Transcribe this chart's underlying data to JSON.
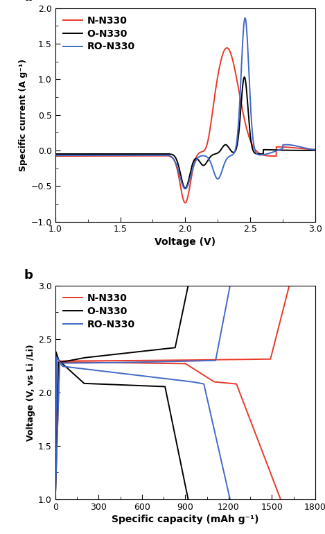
{
  "panel_a": {
    "title": "a",
    "xlabel": "Voltage (V)",
    "ylabel": "Specific current (A g⁻¹)",
    "xlim": [
      1.0,
      3.0
    ],
    "ylim": [
      -1.0,
      2.0
    ],
    "xticks": [
      1.0,
      1.5,
      2.0,
      2.5,
      3.0
    ],
    "yticks": [
      -1.0,
      -0.5,
      0.0,
      0.5,
      1.0,
      1.5,
      2.0
    ],
    "colors": {
      "N-N330": "#e8392a",
      "O-N330": "#000000",
      "RO-N330": "#4169c8"
    },
    "legend_labels": [
      "N-N330",
      "O-N330",
      "RO-N330"
    ]
  },
  "panel_b": {
    "title": "b",
    "xlabel": "Specific capacity (mAh g⁻¹)",
    "ylabel": "Voltage (V, vs Li /Li)",
    "xlim": [
      0,
      1800
    ],
    "ylim": [
      1.0,
      3.0
    ],
    "xticks": [
      0,
      300,
      600,
      900,
      1200,
      1500,
      1800
    ],
    "yticks": [
      1.0,
      1.5,
      2.0,
      2.5,
      3.0
    ],
    "colors": {
      "N-N330": "#e8392a",
      "O-N330": "#000000",
      "RO-N330": "#4169c8"
    },
    "legend_labels": [
      "N-N330",
      "O-N330",
      "RO-N330"
    ]
  }
}
